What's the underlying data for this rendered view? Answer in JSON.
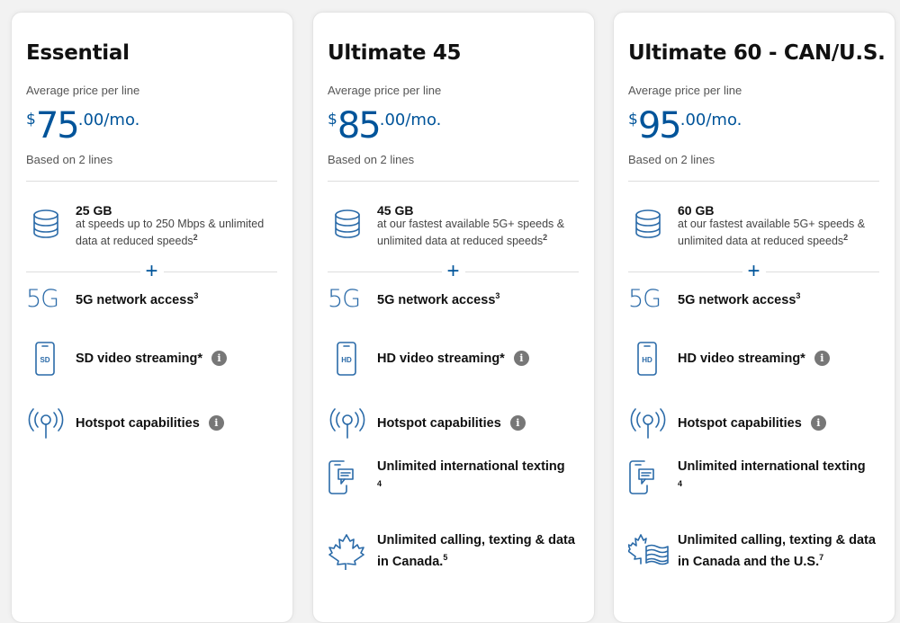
{
  "colors": {
    "accent": "#00549a",
    "icon": "#2a6aa8",
    "background": "#f2f2f2"
  },
  "plans": [
    {
      "name": "Essential",
      "avg_label": "Average price per line",
      "currency": "$",
      "price": "75",
      "cents": ".00/mo.",
      "based": "Based on 2 lines",
      "data": {
        "amount": "25 GB",
        "desc": "at speeds up to 250 Mbps & unlimited data at reduced speeds",
        "sup": "2"
      },
      "plus": "+",
      "features": [
        {
          "icon": "5g-icon",
          "icon_text": "5G",
          "text": "5G network access",
          "sup": "3",
          "info": false
        },
        {
          "icon": "sd-video-phone-icon",
          "icon_text": "SD",
          "text": "SD video streaming*",
          "sup": "",
          "info": true
        },
        {
          "icon": "hotspot-icon",
          "text": "Hotspot capabilities",
          "sup": "",
          "info": true
        }
      ]
    },
    {
      "name": "Ultimate 45",
      "avg_label": "Average price per line",
      "currency": "$",
      "price": "85",
      "cents": ".00/mo.",
      "based": "Based on 2 lines",
      "data": {
        "amount": "45 GB",
        "desc": "at our fastest available 5G+ speeds & unlimited data at reduced speeds",
        "sup": "2"
      },
      "plus": "+",
      "features": [
        {
          "icon": "5g-icon",
          "icon_text": "5G",
          "text": "5G network access",
          "sup": "3",
          "info": false
        },
        {
          "icon": "hd-video-phone-icon",
          "icon_text": "HD",
          "text": "HD video streaming*",
          "sup": "",
          "info": true
        },
        {
          "icon": "hotspot-icon",
          "text": "Hotspot capabilities",
          "sup": "",
          "info": true
        },
        {
          "icon": "phone-message-icon",
          "text": "Unlimited international texting",
          "sup": "4",
          "info": false,
          "sup_newline": true
        },
        {
          "icon": "maple-leaf-icon",
          "text": "Unlimited calling, texting & data in Canada.",
          "sup": "5",
          "info": false
        }
      ]
    },
    {
      "name": "Ultimate 60 - CAN/U.S.",
      "avg_label": "Average price per line",
      "currency": "$",
      "price": "95",
      "cents": ".00/mo.",
      "based": "Based on 2 lines",
      "data": {
        "amount": "60 GB",
        "desc": "at our fastest available 5G+ speeds & unlimited data at reduced speeds",
        "sup": "2"
      },
      "plus": "+",
      "features": [
        {
          "icon": "5g-icon",
          "icon_text": "5G",
          "text": "5G network access",
          "sup": "3",
          "info": false
        },
        {
          "icon": "hd-video-phone-icon",
          "icon_text": "HD",
          "text": "HD video streaming*",
          "sup": "",
          "info": true
        },
        {
          "icon": "hotspot-icon",
          "text": "Hotspot capabilities",
          "sup": "",
          "info": true
        },
        {
          "icon": "phone-message-icon",
          "text": "Unlimited international texting",
          "sup": "4",
          "info": false,
          "sup_newline": true
        },
        {
          "icon": "maple-leaf-us-flag-icon",
          "text": "Unlimited calling, texting & data in Canada and the U.S.",
          "sup": "7",
          "info": false
        }
      ]
    }
  ],
  "info_glyph": "i"
}
